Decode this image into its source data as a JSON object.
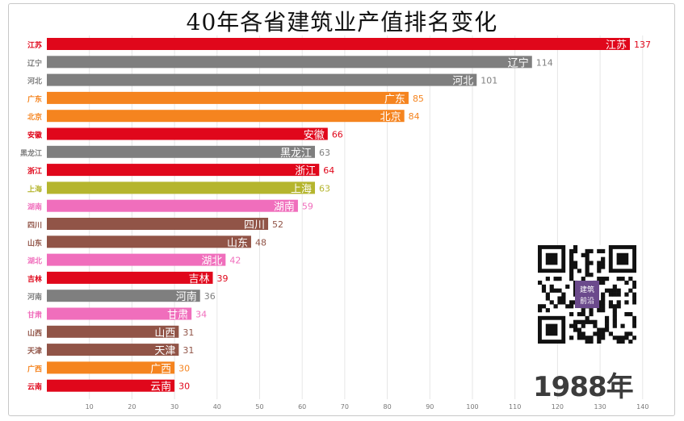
{
  "chart_data": {
    "type": "bar",
    "orientation": "horizontal",
    "title": "40年各省建筑业产值排名变化",
    "categories": [
      "江苏",
      "辽宁",
      "河北",
      "广东",
      "北京",
      "安徽",
      "黑龙江",
      "浙江",
      "上海",
      "湖南",
      "四川",
      "山东",
      "湖北",
      "吉林",
      "河南",
      "甘肃",
      "山西",
      "天津",
      "广西",
      "云南"
    ],
    "values": [
      137,
      114,
      101,
      85,
      84,
      66,
      63,
      64,
      63,
      59,
      52,
      48,
      42,
      39,
      36,
      34,
      31,
      31,
      30,
      30
    ],
    "colors": [
      "#e0071b",
      "#7f7f7f",
      "#7f7f7f",
      "#f5841f",
      "#f5841f",
      "#e0071b",
      "#7f7f7f",
      "#e0071b",
      "#b5b52e",
      "#f06ebc",
      "#915447",
      "#915447",
      "#f06ebc",
      "#e0071b",
      "#7f7f7f",
      "#f06ebc",
      "#915447",
      "#915447",
      "#f5841f",
      "#e0071b"
    ],
    "xticks": [
      10,
      20,
      30,
      40,
      50,
      60,
      70,
      80,
      90,
      100,
      110,
      120,
      130,
      140
    ],
    "xlim": [
      0,
      140
    ],
    "grid": true,
    "xlabel": "",
    "ylabel": ""
  },
  "watermark": {
    "year": "1988年",
    "qr_text": "建筑前沿"
  }
}
